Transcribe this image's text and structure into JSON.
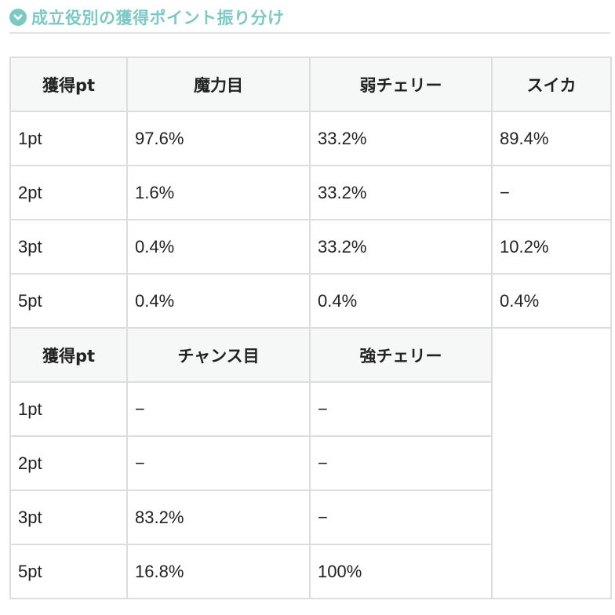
{
  "title": "成立役別の獲得ポイント振り分け",
  "icon": "chevron-down-circle-icon",
  "accent": "#7cc8c4",
  "table1": {
    "headers": [
      "獲得pt",
      "魔力目",
      "弱チェリー",
      "スイカ"
    ],
    "rows": [
      [
        "1pt",
        "97.6%",
        "33.2%",
        "89.4%"
      ],
      [
        "2pt",
        "1.6%",
        "33.2%",
        "−"
      ],
      [
        "3pt",
        "0.4%",
        "33.2%",
        "10.2%"
      ],
      [
        "5pt",
        "0.4%",
        "0.4%",
        "0.4%"
      ]
    ]
  },
  "table2": {
    "headers": [
      "獲得pt",
      "チャンス目",
      "強チェリー"
    ],
    "rows": [
      [
        "1pt",
        "−",
        "−"
      ],
      [
        "2pt",
        "−",
        "−"
      ],
      [
        "3pt",
        "83.2%",
        "−"
      ],
      [
        "5pt",
        "16.8%",
        "100%"
      ]
    ]
  }
}
